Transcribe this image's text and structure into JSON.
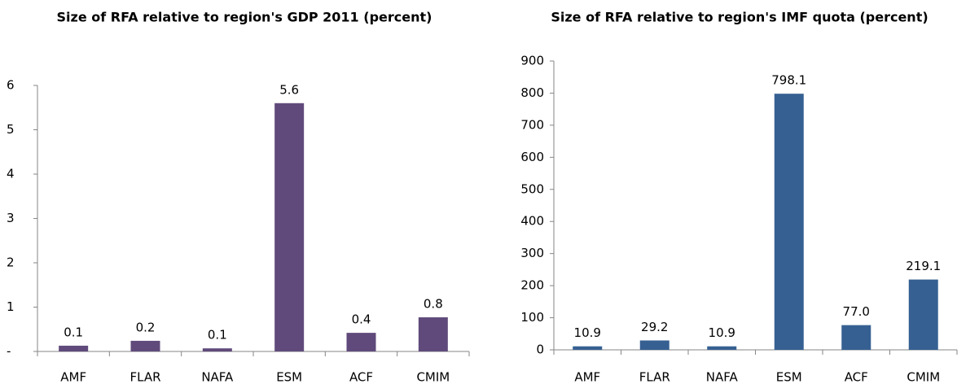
{
  "chart_data": [
    {
      "type": "bar",
      "title": "Size of RFA relative to region's GDP 2011 (percent)",
      "categories": [
        "AMF",
        "FLAR",
        "NAFA",
        "ESM",
        "ACF",
        "CMIM"
      ],
      "values": [
        0.13,
        0.24,
        0.07,
        5.6,
        0.42,
        0.77
      ],
      "value_labels": [
        "0.1",
        "0.2",
        "0.1",
        "5.6",
        "0.4",
        "0.8"
      ],
      "color": "#604a7b",
      "ylim": [
        0,
        6
      ],
      "yticks": [
        {
          "value": 0,
          "label": "-"
        },
        1,
        2,
        3,
        4,
        5,
        6
      ]
    },
    {
      "type": "bar",
      "title": "Size of RFA relative to region's IMF quota (percent)",
      "categories": [
        "AMF",
        "FLAR",
        "NAFA",
        "ESM",
        "ACF",
        "CMIM"
      ],
      "values": [
        10.9,
        29.2,
        10.9,
        798.1,
        77.0,
        219.1
      ],
      "value_labels": [
        "10.9",
        "29.2",
        "10.9",
        "798.1",
        "77.0",
        "219.1"
      ],
      "color": "#366092",
      "ylim": [
        0,
        900
      ],
      "yticks": [
        0,
        100,
        200,
        300,
        400,
        500,
        600,
        700,
        800,
        900
      ]
    }
  ]
}
